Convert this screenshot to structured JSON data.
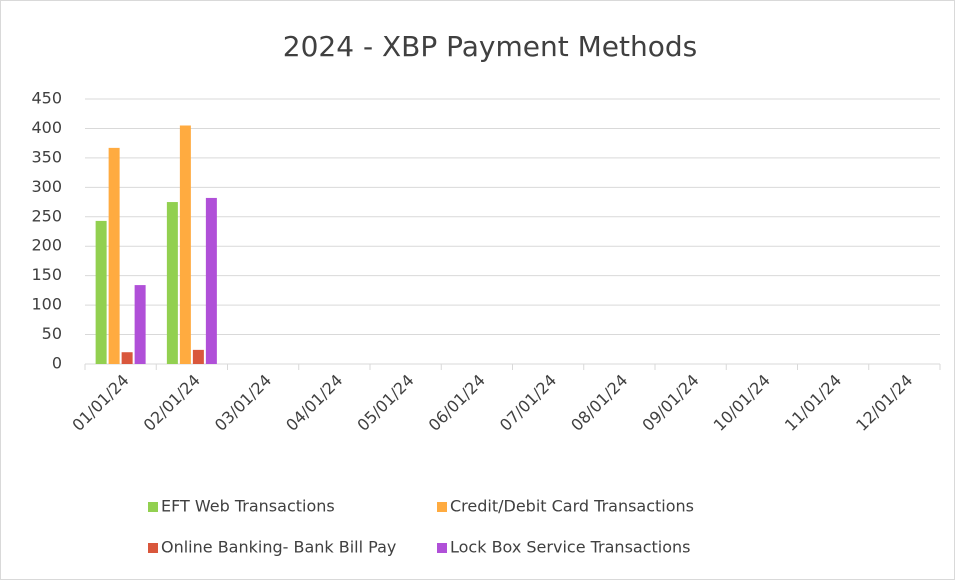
{
  "chart_data": {
    "type": "bar",
    "title": "2024 - XBP Payment Methods",
    "categories": [
      "01/01/24",
      "02/01/24",
      "03/01/24",
      "04/01/24",
      "05/01/24",
      "06/01/24",
      "07/01/24",
      "08/01/24",
      "09/01/24",
      "10/01/24",
      "11/01/24",
      "12/01/24"
    ],
    "series": [
      {
        "name": "EFT Web Transactions",
        "color": "#92d050",
        "values": [
          243,
          275,
          null,
          null,
          null,
          null,
          null,
          null,
          null,
          null,
          null,
          null
        ]
      },
      {
        "name": "Credit/Debit Card Transactions",
        "color": "#ffab40",
        "values": [
          367,
          405,
          null,
          null,
          null,
          null,
          null,
          null,
          null,
          null,
          null,
          null
        ]
      },
      {
        "name": "Online Banking- Bank Bill Pay",
        "color": "#d9573c",
        "values": [
          20,
          24,
          null,
          null,
          null,
          null,
          null,
          null,
          null,
          null,
          null,
          null
        ]
      },
      {
        "name": "Lock Box Service Transactions",
        "color": "#b050d8",
        "values": [
          134,
          282,
          null,
          null,
          null,
          null,
          null,
          null,
          null,
          null,
          null,
          null
        ]
      }
    ],
    "ylim": [
      0,
      450
    ],
    "yticks": [
      0,
      50,
      100,
      150,
      200,
      250,
      300,
      350,
      400,
      450
    ],
    "grid": true,
    "legend": "bottom"
  }
}
